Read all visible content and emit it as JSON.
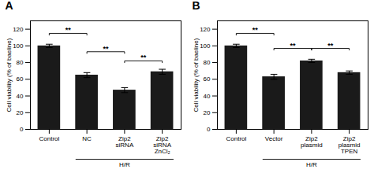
{
  "chart_data": [
    {
      "type": "bar",
      "title": "A",
      "categories": [
        "Control",
        "NC",
        "Zip2\nsiRNA",
        "Zip2\nsiRNA\nZnCl₂"
      ],
      "values": [
        100,
        65,
        47,
        69
      ],
      "errors": [
        2,
        3,
        3,
        3
      ],
      "color": "#1a1a1a",
      "ylabel": "Cell viability (% of baeline)",
      "ylim": [
        0,
        130
      ],
      "yticks": [
        0,
        20,
        40,
        60,
        80,
        100,
        120
      ],
      "significance": [
        {
          "from": "Control",
          "to": "NC",
          "y": 115,
          "label": "**"
        },
        {
          "from": "NC",
          "to": "Zip2\nsiRNA",
          "y": 93,
          "label": "**"
        },
        {
          "from": "Zip2\nsiRNA",
          "to": "Zip2\nsiRNA\nZnCl₂",
          "y": 82,
          "label": "**"
        }
      ],
      "group": {
        "label": "H/R",
        "categories": [
          "NC",
          "Zip2\nsiRNA",
          "Zip2\nsiRNA\nZnCl₂"
        ]
      }
    },
    {
      "type": "bar",
      "title": "B",
      "categories": [
        "Control",
        "Vector",
        "Zip2\nplasmid",
        "Zip2\nplasmid\nTPEN"
      ],
      "values": [
        100,
        63,
        82,
        68
      ],
      "errors": [
        2,
        3,
        2,
        2
      ],
      "color": "#1a1a1a",
      "ylabel": "Cell viability (% of baeline)",
      "ylim": [
        0,
        130
      ],
      "yticks": [
        0,
        20,
        40,
        60,
        80,
        100,
        120
      ],
      "significance": [
        {
          "from": "Control",
          "to": "Vector",
          "y": 115,
          "label": "**"
        },
        {
          "from": "Vector",
          "to": "Zip2\nplasmid",
          "y": 97,
          "label": "**"
        },
        {
          "from": "Zip2\nplasmid",
          "to": "Zip2\nplasmid\nTPEN",
          "y": 97,
          "label": "**"
        }
      ],
      "group": {
        "label": "H/R",
        "categories": [
          "Vector",
          "Zip2\nplasmid",
          "Zip2\nplasmid\nTPEN"
        ]
      }
    }
  ]
}
